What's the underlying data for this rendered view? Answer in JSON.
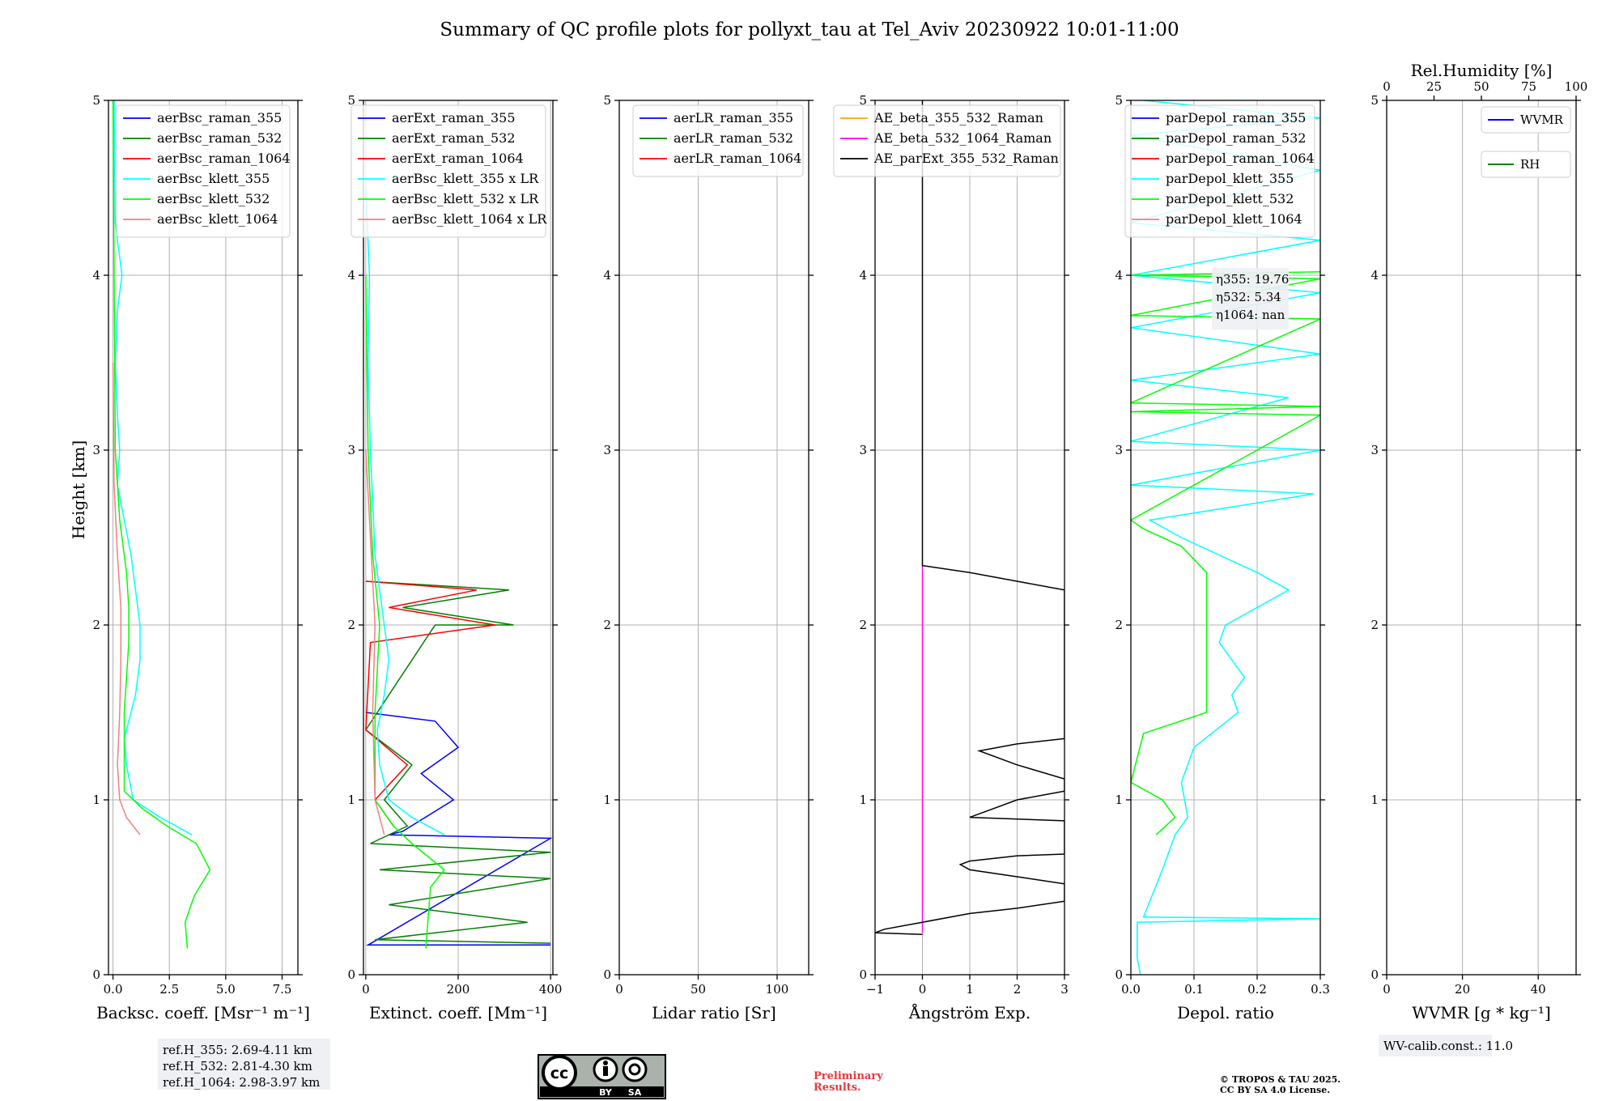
{
  "title": "Summary of QC profile plots for pollyxt_tau at Tel_Aviv 20230922 10:01-11:00",
  "colors": {
    "blue": "#0000ff",
    "green": "#008000",
    "red": "#ff0000",
    "cyan": "#00ffff",
    "lime": "#00ff00",
    "salmon": "#f08080",
    "orange": "#ffa500",
    "magenta": "#ff00ff",
    "black": "#000000",
    "grid": "#b0b0b0"
  },
  "shared_y": {
    "label": "Height [km]",
    "ylim": [
      0,
      5
    ],
    "ticks": [
      0,
      1,
      2,
      3,
      4,
      5
    ]
  },
  "chart_data": [
    {
      "type": "line",
      "xlabel": "Backsc. coeff. [Msr⁻¹ m⁻¹]",
      "xlim": [
        -0.2,
        8.2
      ],
      "xticks": [
        0,
        2.5,
        5,
        7.5
      ],
      "xticklabels": [
        "0.0",
        "2.5",
        "5.0",
        "7.5"
      ],
      "legend": "top-right",
      "series": [
        {
          "name": "aerBsc_raman_355",
          "color": "blue",
          "points": []
        },
        {
          "name": "aerBsc_raman_532",
          "color": "green",
          "points": []
        },
        {
          "name": "aerBsc_raman_1064",
          "color": "red",
          "points": []
        },
        {
          "name": "aerBsc_klett_355",
          "color": "cyan",
          "points": [
            [
              3.5,
              0.8
            ],
            [
              2.1,
              0.9
            ],
            [
              0.9,
              1.0
            ],
            [
              0.6,
              1.2
            ],
            [
              0.5,
              1.35
            ],
            [
              0.7,
              1.45
            ],
            [
              1.0,
              1.6
            ],
            [
              1.2,
              1.8
            ],
            [
              1.2,
              2.0
            ],
            [
              1.0,
              2.2
            ],
            [
              0.8,
              2.4
            ],
            [
              0.5,
              2.6
            ],
            [
              0.2,
              2.8
            ],
            [
              0.3,
              3.0
            ],
            [
              0.2,
              3.2
            ],
            [
              0.1,
              3.5
            ],
            [
              0.2,
              3.8
            ],
            [
              0.4,
              4.0
            ],
            [
              0.1,
              4.3
            ],
            [
              0.05,
              5.0
            ]
          ]
        },
        {
          "name": "aerBsc_klett_532",
          "color": "lime",
          "points": [
            [
              3.3,
              0.15
            ],
            [
              3.2,
              0.3
            ],
            [
              3.6,
              0.45
            ],
            [
              4.3,
              0.6
            ],
            [
              3.7,
              0.75
            ],
            [
              2.4,
              0.85
            ],
            [
              1.3,
              0.95
            ],
            [
              0.5,
              1.05
            ],
            [
              0.5,
              1.3
            ],
            [
              0.5,
              1.5
            ],
            [
              0.6,
              1.7
            ],
            [
              0.7,
              1.9
            ],
            [
              0.7,
              2.1
            ],
            [
              0.6,
              2.3
            ],
            [
              0.3,
              2.6
            ],
            [
              0.1,
              3.0
            ],
            [
              0.05,
              4.0
            ],
            [
              0.0,
              5.0
            ]
          ]
        },
        {
          "name": "aerBsc_klett_1064",
          "color": "salmon",
          "points": [
            [
              1.2,
              0.8
            ],
            [
              0.6,
              0.9
            ],
            [
              0.3,
              1.0
            ],
            [
              0.2,
              1.2
            ],
            [
              0.3,
              1.5
            ],
            [
              0.35,
              1.8
            ],
            [
              0.35,
              2.1
            ],
            [
              0.2,
              2.4
            ],
            [
              0.05,
              2.8
            ],
            [
              0.0,
              3.5
            ]
          ]
        }
      ]
    },
    {
      "type": "line",
      "xlabel": "Extinct. coeff. [Mm⁻¹]",
      "xlim": [
        -5,
        405
      ],
      "xticks": [
        0,
        200,
        400
      ],
      "xticklabels": [
        "0",
        "200",
        "400"
      ],
      "legend": "top-right",
      "series": [
        {
          "name": "aerExt_raman_355",
          "color": "blue",
          "points": [
            [
              400,
              0.17
            ],
            [
              5,
              0.17
            ],
            [
              400,
              0.78
            ],
            [
              50,
              0.8
            ],
            [
              80,
              0.82
            ],
            [
              190,
              1.0
            ],
            [
              120,
              1.15
            ],
            [
              200,
              1.3
            ],
            [
              150,
              1.45
            ],
            [
              0,
              1.5
            ]
          ]
        },
        {
          "name": "aerExt_raman_532",
          "color": "green",
          "points": [
            [
              400,
              0.18
            ],
            [
              20,
              0.2
            ],
            [
              350,
              0.3
            ],
            [
              50,
              0.4
            ],
            [
              400,
              0.55
            ],
            [
              30,
              0.6
            ],
            [
              400,
              0.7
            ],
            [
              10,
              0.75
            ],
            [
              90,
              0.85
            ],
            [
              40,
              1.0
            ],
            [
              100,
              1.2
            ],
            [
              0,
              1.4
            ],
            [
              150,
              2.0
            ],
            [
              320,
              2.0
            ],
            [
              80,
              2.1
            ],
            [
              310,
              2.2
            ],
            [
              0,
              2.25
            ]
          ]
        },
        {
          "name": "aerExt_raman_1064",
          "color": "red",
          "points": [
            [
              60,
              0.85
            ],
            [
              20,
              1.0
            ],
            [
              90,
              1.2
            ],
            [
              0,
              1.4
            ],
            [
              10,
              1.9
            ],
            [
              280,
              2.0
            ],
            [
              50,
              2.1
            ],
            [
              240,
              2.2
            ],
            [
              0,
              2.25
            ]
          ]
        },
        {
          "name": "aerBsc_klett_355 x LR",
          "color": "cyan",
          "points": [
            [
              170,
              0.8
            ],
            [
              100,
              0.9
            ],
            [
              50,
              1.0
            ],
            [
              30,
              1.2
            ],
            [
              25,
              1.4
            ],
            [
              40,
              1.6
            ],
            [
              50,
              1.8
            ],
            [
              40,
              2.0
            ],
            [
              20,
              2.4
            ],
            [
              10,
              3.0
            ],
            [
              5,
              3.5
            ],
            [
              8,
              4.0
            ],
            [
              0,
              4.5
            ]
          ]
        },
        {
          "name": "aerBsc_klett_532 x LR",
          "color": "lime",
          "points": [
            [
              130,
              0.15
            ],
            [
              140,
              0.5
            ],
            [
              170,
              0.6
            ],
            [
              100,
              0.75
            ],
            [
              60,
              0.85
            ],
            [
              20,
              1.0
            ],
            [
              20,
              1.5
            ],
            [
              30,
              2.0
            ],
            [
              15,
              2.4
            ],
            [
              5,
              3.0
            ],
            [
              0,
              4.0
            ]
          ]
        },
        {
          "name": "aerBsc_klett_1064 x LR",
          "color": "salmon",
          "points": [
            [
              40,
              0.8
            ],
            [
              20,
              1.0
            ],
            [
              15,
              1.5
            ],
            [
              20,
              2.0
            ],
            [
              10,
              2.5
            ],
            [
              0,
              3.0
            ]
          ]
        }
      ]
    },
    {
      "type": "line",
      "xlabel": "Lidar ratio [Sr]",
      "xlim": [
        0,
        120
      ],
      "xticks": [
        0,
        50,
        100
      ],
      "xticklabels": [
        "0",
        "50",
        "100"
      ],
      "legend": "top-right",
      "series": [
        {
          "name": "aerLR_raman_355",
          "color": "blue",
          "points": []
        },
        {
          "name": "aerLR_raman_532",
          "color": "green",
          "points": []
        },
        {
          "name": "aerLR_raman_1064",
          "color": "red",
          "points": []
        }
      ]
    },
    {
      "type": "line",
      "xlabel": "Ångström Exp.",
      "xlim": [
        -1,
        3
      ],
      "xticks": [
        -1,
        0,
        1,
        2,
        3
      ],
      "xticklabels": [
        "−1",
        "0",
        "1",
        "2",
        "3"
      ],
      "legend": "top-right",
      "series": [
        {
          "name": "AE_beta_355_532_Raman",
          "color": "orange",
          "points": []
        },
        {
          "name": "AE_beta_532_1064_Raman",
          "color": "magenta",
          "points": [
            [
              0,
              0.24
            ],
            [
              0,
              2.34
            ]
          ]
        },
        {
          "name": "AE_parExt_355_532_Raman",
          "color": "black",
          "points": [
            [
              0,
              0.23
            ],
            [
              -1,
              0.24
            ],
            [
              -0.8,
              0.26
            ],
            [
              0,
              0.3
            ],
            [
              1,
              0.35
            ],
            [
              2,
              0.38
            ],
            [
              3,
              0.42
            ],
            [
              3,
              0.52
            ],
            [
              2,
              0.56
            ],
            [
              1,
              0.6
            ],
            [
              0.8,
              0.63
            ],
            [
              1,
              0.65
            ],
            [
              2,
              0.68
            ],
            [
              3,
              0.69
            ],
            [
              3,
              0.88
            ],
            [
              1,
              0.9
            ],
            [
              1.5,
              0.95
            ],
            [
              2,
              1.0
            ],
            [
              3,
              1.05
            ],
            [
              3,
              1.12
            ],
            [
              2,
              1.2
            ],
            [
              1.2,
              1.28
            ],
            [
              2,
              1.32
            ],
            [
              3,
              1.35
            ],
            [
              3,
              2.2
            ],
            [
              2,
              2.25
            ],
            [
              1,
              2.3
            ],
            [
              0,
              2.34
            ],
            [
              0,
              5
            ]
          ]
        }
      ]
    },
    {
      "type": "line",
      "xlabel": "Depol. ratio",
      "xlim": [
        0,
        0.3
      ],
      "xticks": [
        0,
        0.1,
        0.2,
        0.3
      ],
      "xticklabels": [
        "0.0",
        "0.1",
        "0.2",
        "0.3"
      ],
      "legend": "top-right",
      "annotation": {
        "lines": [
          "η355: 19.76",
          "η532: 5.34",
          "η1064: nan"
        ]
      },
      "series": [
        {
          "name": "parDepol_raman_355",
          "color": "blue",
          "points": []
        },
        {
          "name": "parDepol_raman_532",
          "color": "green",
          "points": []
        },
        {
          "name": "parDepol_raman_1064",
          "color": "red",
          "points": []
        },
        {
          "name": "parDepol_klett_355",
          "color": "cyan",
          "points": [
            [
              0.015,
              0.0
            ],
            [
              0.01,
              0.1
            ],
            [
              0.01,
              0.3
            ],
            [
              0.3,
              0.32
            ],
            [
              0.02,
              0.33
            ],
            [
              0.05,
              0.6
            ],
            [
              0.07,
              0.8
            ],
            [
              0.09,
              0.9
            ],
            [
              0.08,
              1.1
            ],
            [
              0.1,
              1.3
            ],
            [
              0.17,
              1.5
            ],
            [
              0.16,
              1.6
            ],
            [
              0.18,
              1.7
            ],
            [
              0.14,
              1.9
            ],
            [
              0.15,
              2.0
            ],
            [
              0.2,
              2.1
            ],
            [
              0.25,
              2.2
            ],
            [
              0.2,
              2.3
            ],
            [
              0.08,
              2.5
            ],
            [
              0.03,
              2.6
            ],
            [
              0.29,
              2.75
            ],
            [
              0.0,
              2.8
            ],
            [
              0.3,
              3.0
            ],
            [
              0.0,
              3.05
            ],
            [
              0.25,
              3.3
            ],
            [
              0.0,
              3.4
            ],
            [
              0.3,
              3.55
            ],
            [
              0.0,
              3.7
            ],
            [
              0.3,
              3.9
            ],
            [
              0.0,
              4.0
            ],
            [
              0.3,
              4.2
            ],
            [
              0.0,
              4.3
            ],
            [
              0.3,
              4.6
            ],
            [
              0.0,
              4.8
            ],
            [
              0.3,
              4.9
            ],
            [
              0.02,
              5.0
            ]
          ]
        },
        {
          "name": "parDepol_klett_532",
          "color": "lime",
          "points": [
            [
              0.04,
              0.8
            ],
            [
              0.07,
              0.9
            ],
            [
              0.05,
              1.0
            ],
            [
              0.0,
              1.1
            ],
            [
              0.02,
              1.38
            ],
            [
              0.12,
              1.5
            ],
            [
              0.12,
              1.7
            ],
            [
              0.12,
              1.9
            ],
            [
              0.12,
              2.1
            ],
            [
              0.12,
              2.3
            ],
            [
              0.08,
              2.45
            ],
            [
              0.02,
              2.55
            ],
            [
              0.0,
              2.6
            ],
            [
              0.3,
              3.2
            ],
            [
              0.0,
              3.22
            ],
            [
              0.3,
              3.25
            ],
            [
              0.0,
              3.27
            ],
            [
              0.3,
              3.75
            ],
            [
              0.0,
              3.77
            ],
            [
              0.3,
              3.98
            ],
            [
              0.0,
              4.0
            ],
            [
              0.3,
              4.02
            ]
          ]
        },
        {
          "name": "parDepol_klett_1064",
          "color": "salmon",
          "points": []
        }
      ]
    },
    {
      "type": "line",
      "xlabel": "WVMR [g * kg⁻¹]",
      "xlim": [
        0,
        50
      ],
      "xticks": [
        0,
        20,
        40
      ],
      "xticklabels": [
        "0",
        "20",
        "40"
      ],
      "top_axis": {
        "label": "Rel.Humidity [%]",
        "ticks": [
          0,
          25,
          50,
          75,
          100
        ],
        "ticklabels": [
          "0",
          "25",
          "50",
          "75",
          "100"
        ]
      },
      "legend": "top-right",
      "series": [
        {
          "name": "WVMR",
          "color": "blue",
          "points": []
        },
        {
          "name": "RH",
          "color": "green",
          "points": []
        }
      ]
    }
  ],
  "footer": {
    "ref_heights": [
      "ref.H_355: 2.69-4.11 km",
      "ref.H_532: 2.81-4.30 km",
      "ref.H_1064: 2.98-3.97 km"
    ],
    "license_badge": {
      "by": "BY",
      "sa": "SA",
      "cc": "cc"
    },
    "preliminary": [
      "Preliminary",
      "Results."
    ],
    "copyright": [
      "© TROPOS & TAU 2025.",
      "CC BY SA 4.0 License."
    ],
    "wv_calib": "WV-calib.const.: 11.0"
  }
}
